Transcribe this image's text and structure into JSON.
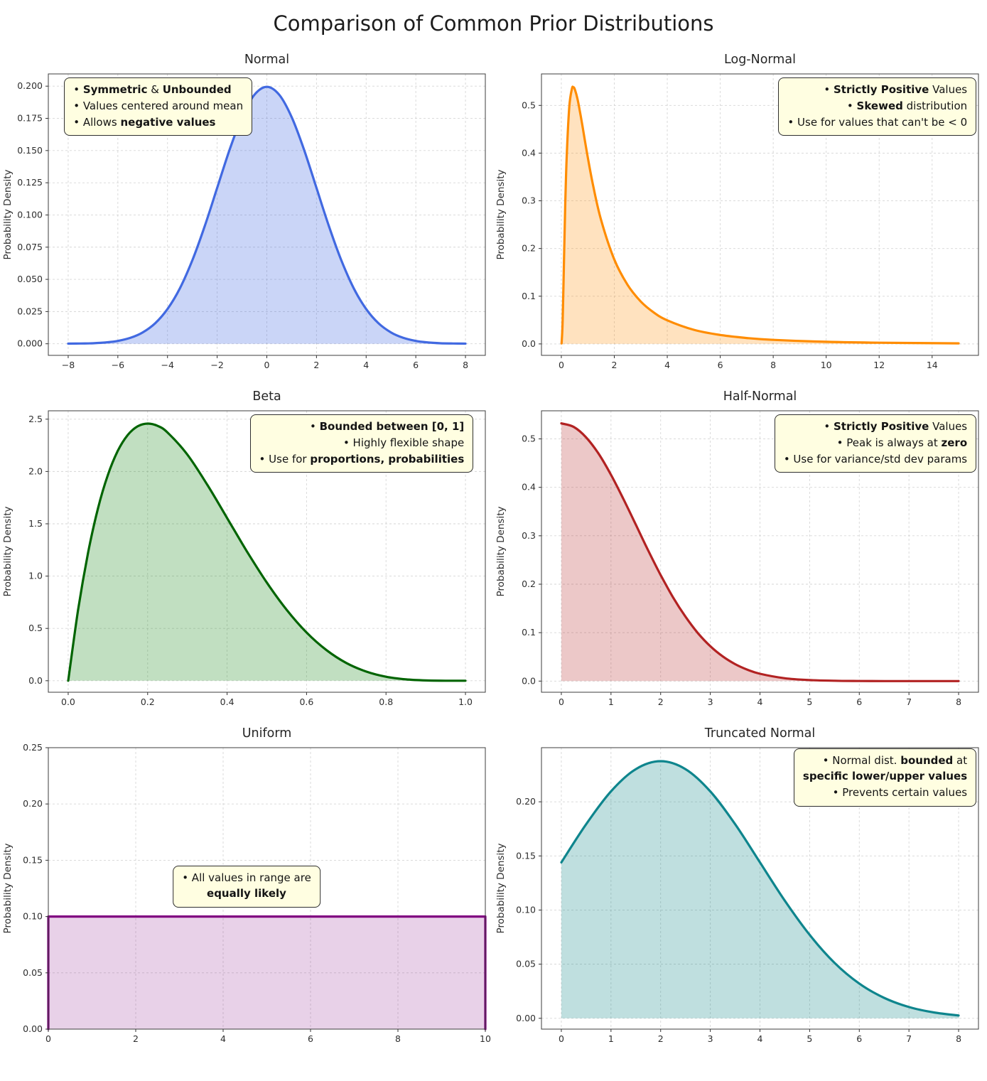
{
  "figure_title": "Comparison of Common Prior Distributions",
  "ylabel": "Probability Density",
  "chart_data": [
    {
      "title": "Normal",
      "type": "area",
      "color": "#4169e1",
      "fill": "rgba(65,105,225,0.28)",
      "smooth": true,
      "xlim": [
        -8.8,
        8.8
      ],
      "ylim": [
        -0.009,
        0.2095
      ],
      "xticks": [
        -8,
        -6,
        -4,
        -2,
        0,
        2,
        4,
        6,
        8
      ],
      "xtick_labels": [
        "−8",
        "−6",
        "−4",
        "−2",
        "0",
        "2",
        "4",
        "6",
        "8"
      ],
      "yticks": [
        0,
        0.025,
        0.05,
        0.075,
        0.1,
        0.125,
        0.15,
        0.175,
        0.2
      ],
      "ytick_labels": [
        "0.000",
        "0.025",
        "0.050",
        "0.075",
        "0.100",
        "0.125",
        "0.150",
        "0.175",
        "0.200"
      ],
      "x": [
        -8,
        -7.5,
        -7,
        -6.5,
        -6,
        -5.5,
        -5,
        -4.5,
        -4,
        -3.5,
        -3,
        -2.5,
        -2,
        -1.5,
        -1,
        -0.5,
        0,
        0.5,
        1,
        1.5,
        2,
        2.5,
        3,
        3.5,
        4,
        4.5,
        5,
        5.5,
        6,
        6.5,
        7,
        7.5,
        8
      ],
      "y": [
        0.0001,
        0.0002,
        0.0004,
        0.001,
        0.0022,
        0.0046,
        0.0088,
        0.0159,
        0.027,
        0.0431,
        0.0648,
        0.0913,
        0.121,
        0.1506,
        0.176,
        0.1933,
        0.1995,
        0.1933,
        0.176,
        0.1506,
        0.121,
        0.0913,
        0.0648,
        0.0431,
        0.027,
        0.0159,
        0.0088,
        0.0046,
        0.0022,
        0.001,
        0.0004,
        0.0002,
        0.0001
      ],
      "annotation": {
        "align": "left",
        "pos": {
          "top": "3%",
          "left": "13%"
        },
        "lines": [
          [
            {
              "t": "• "
            },
            {
              "t": "Symmetric",
              "b": true
            },
            {
              "t": " & "
            },
            {
              "t": "Unbounded",
              "b": true
            }
          ],
          [
            {
              "t": "• Values centered around mean"
            }
          ],
          [
            {
              "t": "• Allows "
            },
            {
              "t": "negative values",
              "b": true
            }
          ]
        ]
      }
    },
    {
      "title": "Log-Normal",
      "type": "area",
      "color": "#ff8c00",
      "fill": "rgba(255,140,0,0.25)",
      "smooth": true,
      "xlim": [
        -0.75,
        15.75
      ],
      "ylim": [
        -0.024,
        0.566
      ],
      "xticks": [
        0,
        2,
        4,
        6,
        8,
        10,
        12,
        14
      ],
      "xtick_labels": [
        "0",
        "2",
        "4",
        "6",
        "8",
        "10",
        "12",
        "14"
      ],
      "yticks": [
        0,
        0.1,
        0.2,
        0.3,
        0.4,
        0.5
      ],
      "ytick_labels": [
        "0.0",
        "0.1",
        "0.2",
        "0.3",
        "0.4",
        "0.5"
      ],
      "x": [
        0.01,
        0.05,
        0.1,
        0.15,
        0.2,
        0.3,
        0.4,
        0.45,
        0.5,
        0.6,
        0.7,
        0.8,
        1,
        1.2,
        1.5,
        2,
        2.5,
        3,
        3.5,
        4,
        5,
        6,
        7,
        8,
        10,
        12,
        15
      ],
      "y": [
        0.001,
        0.048,
        0.174,
        0.295,
        0.388,
        0.496,
        0.535,
        0.538,
        0.535,
        0.516,
        0.488,
        0.456,
        0.391,
        0.332,
        0.26,
        0.177,
        0.124,
        0.0888,
        0.0655,
        0.0494,
        0.0296,
        0.0187,
        0.0124,
        0.0085,
        0.0044,
        0.0025,
        0.0012
      ],
      "annotation": {
        "align": "right",
        "pos": {
          "top": "3%",
          "right": "2%"
        },
        "lines": [
          [
            {
              "t": "• "
            },
            {
              "t": "Strictly Positive",
              "b": true
            },
            {
              "t": " Values"
            }
          ],
          [
            {
              "t": "• "
            },
            {
              "t": "Skewed",
              "b": true
            },
            {
              "t": " distribution"
            }
          ],
          [
            {
              "t": "• Use for values that can't be < 0"
            }
          ]
        ]
      }
    },
    {
      "title": "Beta",
      "type": "area",
      "color": "#006400",
      "fill": "rgba(34,139,34,0.28)",
      "smooth": true,
      "xlim": [
        -0.05,
        1.05
      ],
      "ylim": [
        -0.11,
        2.58
      ],
      "xticks": [
        0,
        0.2,
        0.4,
        0.6,
        0.8,
        1
      ],
      "xtick_labels": [
        "0.0",
        "0.2",
        "0.4",
        "0.6",
        "0.8",
        "1.0"
      ],
      "yticks": [
        0,
        0.5,
        1,
        1.5,
        2,
        2.5
      ],
      "ytick_labels": [
        "0.0",
        "0.5",
        "1.0",
        "1.5",
        "2.0",
        "2.5"
      ],
      "x": [
        0,
        0.025,
        0.05,
        0.075,
        0.1,
        0.125,
        0.15,
        0.175,
        0.2,
        0.225,
        0.25,
        0.3,
        0.35,
        0.4,
        0.45,
        0.5,
        0.55,
        0.6,
        0.65,
        0.7,
        0.75,
        0.8,
        0.85,
        0.9,
        0.95,
        1
      ],
      "y": [
        0,
        0.678,
        1.222,
        1.647,
        1.968,
        2.198,
        2.349,
        2.432,
        2.458,
        2.436,
        2.373,
        2.161,
        1.874,
        1.555,
        1.236,
        0.938,
        0.677,
        0.461,
        0.293,
        0.17,
        0.088,
        0.038,
        0.013,
        0.0027,
        0.0002,
        0
      ],
      "annotation": {
        "align": "right",
        "pos": {
          "top": "3%",
          "right": "4%"
        },
        "lines": [
          [
            {
              "t": "• "
            },
            {
              "t": "Bounded between [0, 1]",
              "b": true
            }
          ],
          [
            {
              "t": "• Highly flexible shape"
            }
          ],
          [
            {
              "t": "• Use for "
            },
            {
              "t": "proportions, probabilities",
              "b": true
            }
          ]
        ]
      }
    },
    {
      "title": "Half-Normal",
      "type": "area",
      "color": "#b22222",
      "fill": "rgba(178,34,34,0.25)",
      "smooth": true,
      "xlim": [
        -0.4,
        8.4
      ],
      "ylim": [
        -0.023,
        0.558
      ],
      "xticks": [
        0,
        1,
        2,
        3,
        4,
        5,
        6,
        7,
        8
      ],
      "xtick_labels": [
        "0",
        "1",
        "2",
        "3",
        "4",
        "5",
        "6",
        "7",
        "8"
      ],
      "yticks": [
        0,
        0.1,
        0.2,
        0.3,
        0.4,
        0.5
      ],
      "ytick_labels": [
        "0.0",
        "0.1",
        "0.2",
        "0.3",
        "0.4",
        "0.5"
      ],
      "x": [
        0,
        0.25,
        0.5,
        0.75,
        1,
        1.25,
        1.5,
        1.75,
        2,
        2.25,
        2.5,
        2.75,
        3,
        3.25,
        3.5,
        3.75,
        4,
        4.5,
        5,
        5.5,
        6,
        6.5,
        7,
        7.5,
        8
      ],
      "y": [
        0.532,
        0.5247,
        0.503,
        0.4695,
        0.426,
        0.3759,
        0.323,
        0.2694,
        0.219,
        0.1727,
        0.133,
        0.0991,
        0.072,
        0.0509,
        0.035,
        0.0234,
        0.0152,
        0.0059,
        0.0021,
        0.0007,
        0.0002,
        0.0001,
        0.0001,
        0.0001,
        0.0001
      ],
      "annotation": {
        "align": "right",
        "pos": {
          "top": "3%",
          "right": "2%"
        },
        "lines": [
          [
            {
              "t": "• "
            },
            {
              "t": "Strictly Positive",
              "b": true
            },
            {
              "t": " Values"
            }
          ],
          [
            {
              "t": "• Peak is always at "
            },
            {
              "t": "zero",
              "b": true
            }
          ],
          [
            {
              "t": "• Use for variance/std dev params"
            }
          ]
        ]
      }
    },
    {
      "title": "Uniform",
      "type": "area",
      "color": "#800080",
      "fill": "rgba(128,0,128,0.18)",
      "smooth": false,
      "xlim": [
        0,
        10
      ],
      "ylim": [
        0,
        0.25
      ],
      "xticks": [
        0,
        2,
        4,
        6,
        8,
        10
      ],
      "xtick_labels": [
        "0",
        "2",
        "4",
        "6",
        "8",
        "10"
      ],
      "yticks": [
        0,
        0.05,
        0.1,
        0.15,
        0.2,
        0.25
      ],
      "ytick_labels": [
        "0.00",
        "0.05",
        "0.10",
        "0.15",
        "0.20",
        "0.25"
      ],
      "x": [
        0,
        0,
        10,
        10
      ],
      "y": [
        0,
        0.1,
        0.1,
        0
      ],
      "annotation": {
        "align": "center",
        "center": true,
        "pos": {
          "top": "40%",
          "left": "50%"
        },
        "lines": [
          [
            {
              "t": "• All values in range are"
            }
          ],
          [
            {
              "t": "equally likely",
              "b": true
            }
          ]
        ]
      }
    },
    {
      "title": "Truncated Normal",
      "type": "area",
      "color": "#0e858d",
      "fill": "rgba(0,128,128,0.25)",
      "smooth": true,
      "xlim": [
        -0.4,
        8.4
      ],
      "ylim": [
        -0.01,
        0.25
      ],
      "xticks": [
        0,
        1,
        2,
        3,
        4,
        5,
        6,
        7,
        8
      ],
      "xtick_labels": [
        "0",
        "1",
        "2",
        "3",
        "4",
        "5",
        "6",
        "7",
        "8"
      ],
      "yticks": [
        0,
        0.05,
        0.1,
        0.15,
        0.2
      ],
      "ytick_labels": [
        "0.00",
        "0.05",
        "0.10",
        "0.15",
        "0.20"
      ],
      "x": [
        0,
        0.5,
        1,
        1.5,
        2,
        2.5,
        3,
        3.5,
        4,
        4.5,
        5,
        5.5,
        6,
        6.5,
        7,
        7.5,
        8
      ],
      "y": [
        0.144,
        0.1793,
        0.2096,
        0.2302,
        0.2375,
        0.2302,
        0.2096,
        0.1793,
        0.144,
        0.1087,
        0.0771,
        0.0513,
        0.0321,
        0.0189,
        0.0104,
        0.0054,
        0.0026
      ],
      "annotation": {
        "align": "right",
        "pos": {
          "top": "2%",
          "right": "2%"
        },
        "lines": [
          [
            {
              "t": "• Normal dist. "
            },
            {
              "t": "bounded",
              "b": true
            },
            {
              "t": " at"
            }
          ],
          [
            {
              "t": "specific lower/upper values",
              "b": true
            }
          ],
          [
            {
              "t": "• Prevents certain values"
            }
          ]
        ]
      }
    }
  ]
}
